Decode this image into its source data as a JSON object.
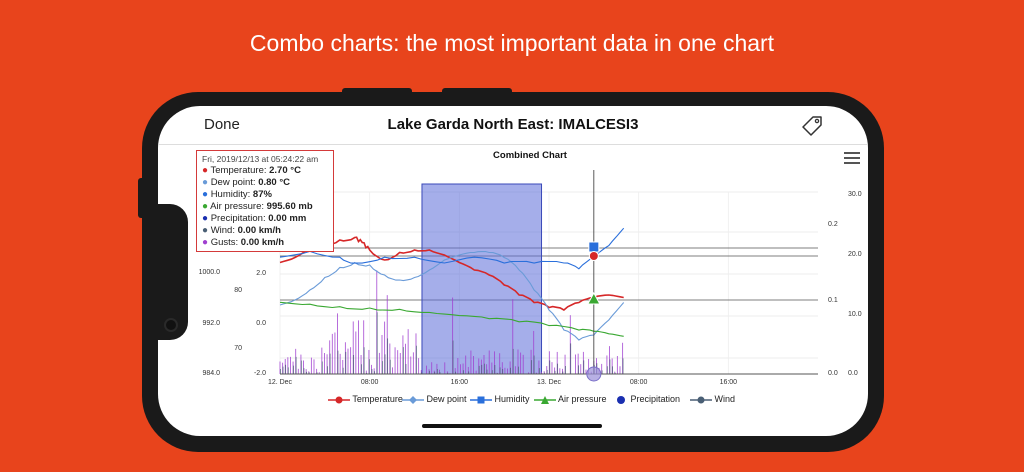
{
  "headline": "Combo charts: the most important data in one chart",
  "nav": {
    "done_label": "Done",
    "title": "Lake Garda North East: IMALCESI3",
    "tag_icon": "tag-icon"
  },
  "tooltip": {
    "timestamp": "Fri, 2019/12/13 at 05:24:22 am",
    "rows": [
      {
        "label": "Temperature:",
        "value": "2.70 °C",
        "color": "#d62728"
      },
      {
        "label": "Dew point:",
        "value": "0.80 °C",
        "color": "#6a9bd8"
      },
      {
        "label": "Humidity:",
        "value": "87%",
        "color": "#2a6fdb"
      },
      {
        "label": "Air pressure:",
        "value": "995.60 mb",
        "color": "#3aa832"
      },
      {
        "label": "Precipitation:",
        "value": "0.00 mm",
        "color": "#1a2fb0"
      },
      {
        "label": "Wind:",
        "value": "0.00 km/h",
        "color": "#4a5f75"
      },
      {
        "label": "Gusts:",
        "value": "0.00 km/h",
        "color": "#a040d0"
      }
    ]
  },
  "chart_data": {
    "type": "line",
    "title": "Combined Chart",
    "x_ticks": [
      "12. Dec",
      "08:00",
      "16:00",
      "13. Dec",
      "08:00",
      "16:00"
    ],
    "axis_pressure_ticks": [
      "1000.0",
      "992.0",
      "984.0"
    ],
    "axis_temp_ticks": [
      "2.0",
      "0.0",
      "-2.0"
    ],
    "axis_humidity_ticks": [
      "80",
      "70"
    ],
    "axis_precip_ticks": [
      "0.2",
      "0.1",
      "0.0"
    ],
    "axis_wind_ticks": [
      "30.0",
      "20.0",
      "10.0",
      "0.0"
    ],
    "legend": [
      {
        "name": "Temperature",
        "color": "#d62728",
        "marker": "circle"
      },
      {
        "name": "Dew point",
        "color": "#6a9bd8",
        "marker": "diamond"
      },
      {
        "name": "Humidity",
        "color": "#2a6fdb",
        "marker": "square"
      },
      {
        "name": "Air pressure",
        "color": "#3aa832",
        "marker": "triangle"
      },
      {
        "name": "Precipitation",
        "color": "#1a2fb0",
        "marker": "circle"
      },
      {
        "name": "Wind",
        "color": "#4a5f75",
        "marker": "circle"
      }
    ],
    "series": [
      {
        "name": "Temperature",
        "color": "#d62728",
        "x": [
          0,
          2,
          4,
          6,
          8,
          10,
          11,
          12,
          14,
          16,
          18,
          20,
          22,
          24,
          26,
          28,
          30,
          32,
          34,
          36,
          38,
          40,
          42,
          44,
          46
        ],
        "values": [
          2.5,
          2.7,
          3.1,
          3.2,
          3.4,
          3.5,
          3.3,
          3.0,
          2.6,
          2.9,
          3.0,
          3.0,
          2.8,
          2.5,
          2.2,
          2.0,
          1.6,
          1.2,
          0.9,
          0.7,
          0.6,
          0.9,
          1.1,
          1.2,
          1.1
        ]
      },
      {
        "name": "Dew point",
        "color": "#6a9bd8",
        "x": [
          0,
          2,
          4,
          6,
          8,
          10,
          12,
          14,
          16,
          18,
          20,
          22,
          24,
          26,
          28,
          30,
          32,
          34,
          36,
          38,
          40,
          42,
          44,
          46
        ],
        "values": [
          0.8,
          1.0,
          1.4,
          1.9,
          2.3,
          2.5,
          2.4,
          2.0,
          1.8,
          1.9,
          2.2,
          2.6,
          2.8,
          2.9,
          2.9,
          2.7,
          2.2,
          1.4,
          0.6,
          -0.2,
          -0.6,
          -0.4,
          0.2,
          0.9
        ]
      },
      {
        "name": "Humidity",
        "color": "#2a6fdb",
        "x": [
          0,
          4,
          8,
          10,
          14,
          18,
          22,
          26,
          30,
          34,
          38,
          40,
          42,
          44,
          46
        ],
        "values": [
          86,
          87,
          86,
          85,
          86,
          86,
          85,
          86,
          85,
          85,
          85,
          84,
          86,
          88,
          91
        ]
      },
      {
        "name": "Air pressure",
        "color": "#3aa832",
        "x": [
          0,
          4,
          8,
          12,
          16,
          20,
          24,
          28,
          32,
          36,
          40,
          42,
          44,
          46
        ],
        "values": [
          995.6,
          995.3,
          994.9,
          994.7,
          994.5,
          994.0,
          993.5,
          993.0,
          992.5,
          991.9,
          991.2,
          991.0,
          990.6,
          990.2
        ]
      },
      {
        "name": "Precipitation",
        "color": "#1a2fb0",
        "x": [
          0,
          46
        ],
        "values": [
          0.0,
          0.0
        ]
      },
      {
        "name": "Wind",
        "color": "#4a5f75",
        "x": [
          0,
          2,
          4,
          6,
          8,
          10,
          12,
          14,
          16,
          18,
          20,
          22,
          24,
          26,
          28,
          30,
          32,
          34,
          36,
          38,
          40,
          42,
          44,
          46
        ],
        "values": [
          2,
          4,
          6,
          9,
          14,
          11,
          7,
          5,
          3,
          2,
          1,
          1,
          2,
          1,
          3,
          4,
          2,
          1,
          1,
          2,
          3,
          1,
          2,
          1
        ]
      }
    ],
    "highlight_range": {
      "x_start": 19,
      "x_end": 35
    },
    "crosshair_x": 42
  },
  "colors": {
    "accent": "#e8441c",
    "tooltip_border": "#d43a3a",
    "highlight": "#5b6bd8"
  }
}
